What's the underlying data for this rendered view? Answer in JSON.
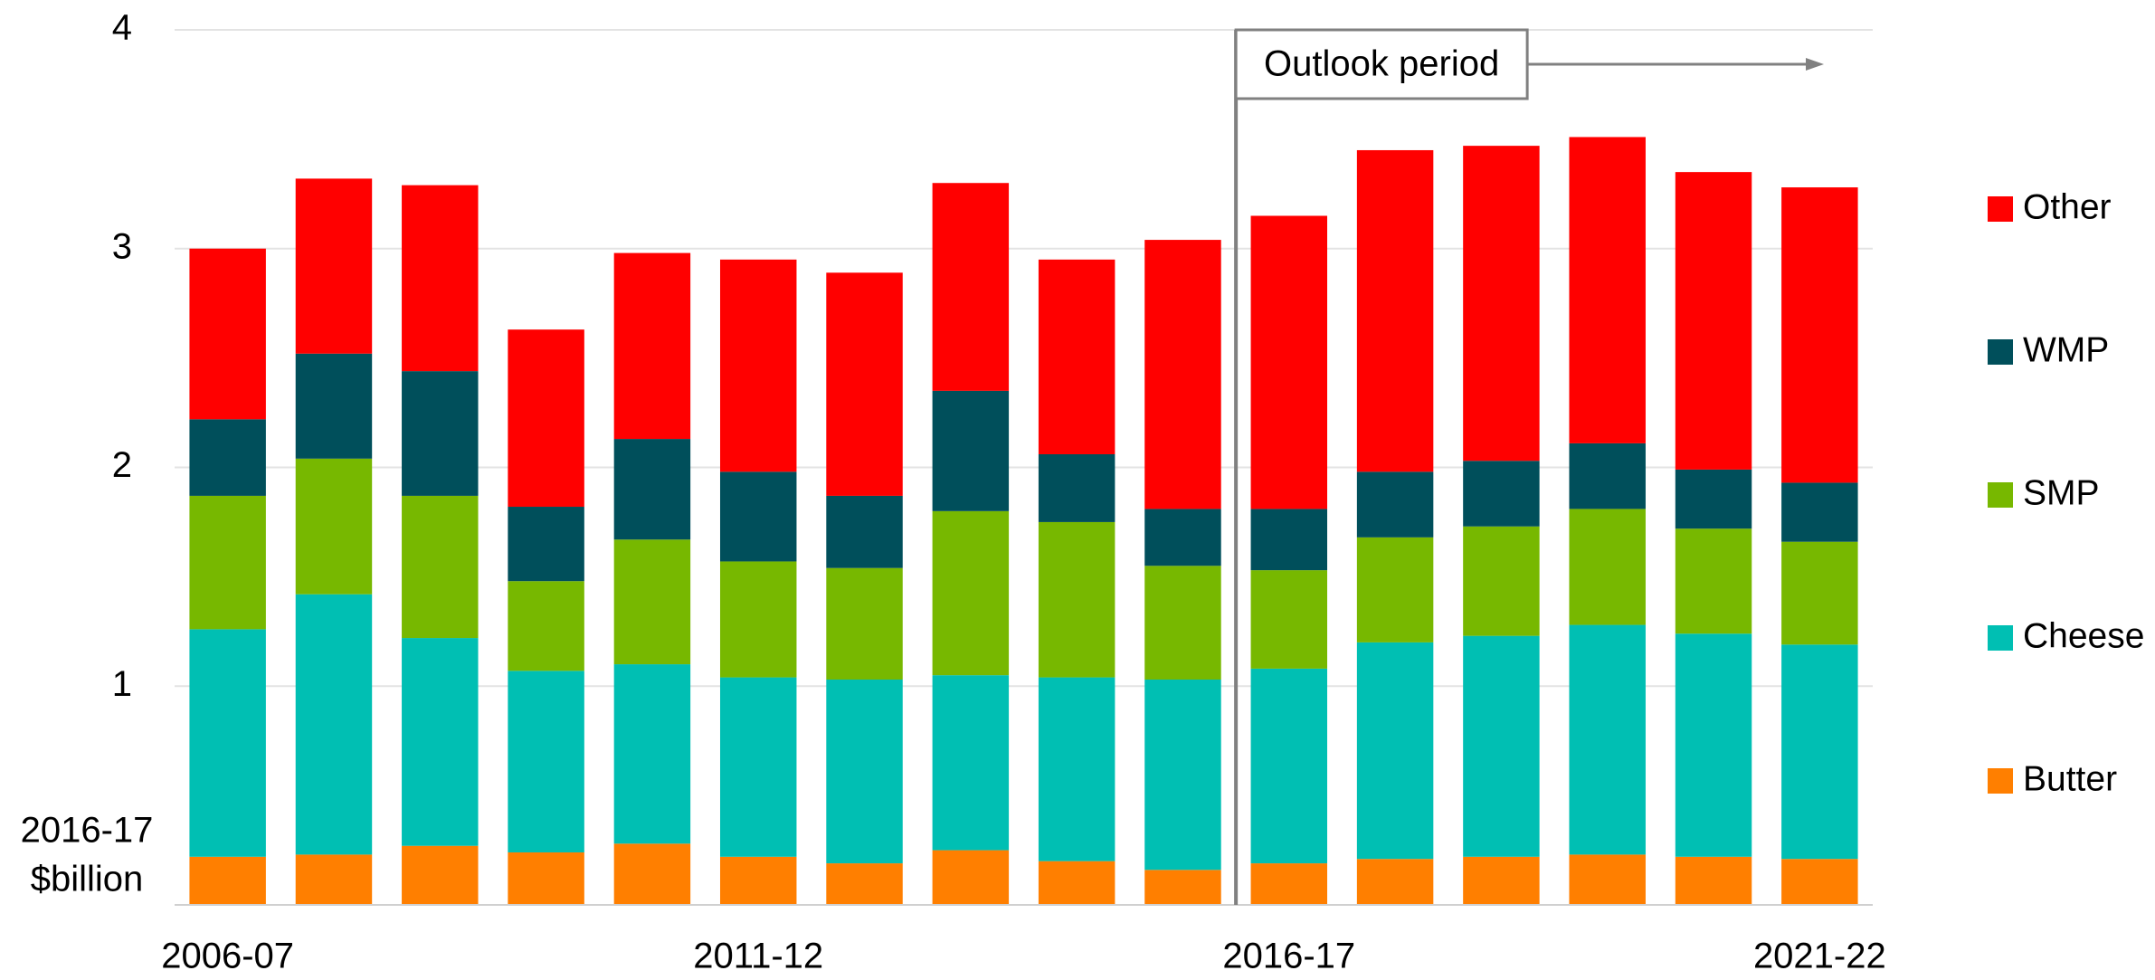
{
  "chart_data": {
    "type": "stacked_bar",
    "ylabel": [
      "2016-17",
      "$billion"
    ],
    "annotation": "Outlook period",
    "categories": [
      "2006-07",
      null,
      null,
      null,
      null,
      "2011-12",
      null,
      null,
      null,
      null,
      "2016-17",
      null,
      null,
      null,
      null,
      "2021-22"
    ],
    "series": [
      {
        "name": "Butter",
        "color": "#ff7f00",
        "values": [
          0.22,
          0.23,
          0.27,
          0.24,
          0.28,
          0.22,
          0.19,
          0.25,
          0.2,
          0.16,
          0.19,
          0.21,
          0.22,
          0.23,
          0.22,
          0.21
        ]
      },
      {
        "name": "Cheese",
        "color": "#00bfb3",
        "values": [
          1.04,
          1.19,
          0.95,
          0.83,
          0.82,
          0.82,
          0.84,
          0.8,
          0.84,
          0.87,
          0.89,
          0.99,
          1.01,
          1.05,
          1.02,
          0.98
        ]
      },
      {
        "name": "SMP",
        "color": "#77b800",
        "values": [
          0.61,
          0.62,
          0.65,
          0.41,
          0.57,
          0.53,
          0.51,
          0.75,
          0.71,
          0.52,
          0.45,
          0.48,
          0.5,
          0.53,
          0.48,
          0.47
        ]
      },
      {
        "name": "WMP",
        "color": "#004f5b",
        "values": [
          0.35,
          0.48,
          0.57,
          0.34,
          0.46,
          0.41,
          0.33,
          0.55,
          0.31,
          0.26,
          0.28,
          0.3,
          0.3,
          0.3,
          0.27,
          0.27
        ]
      },
      {
        "name": "Other",
        "color": "#ff0000",
        "values": [
          0.78,
          0.8,
          0.85,
          0.81,
          0.85,
          0.97,
          1.02,
          0.95,
          0.89,
          1.23,
          1.34,
          1.47,
          1.44,
          1.4,
          1.36,
          1.35
        ]
      }
    ],
    "ylim": [
      0,
      4
    ],
    "yticks": [
      1,
      2,
      3,
      4
    ],
    "grid": true,
    "legend": "right"
  }
}
